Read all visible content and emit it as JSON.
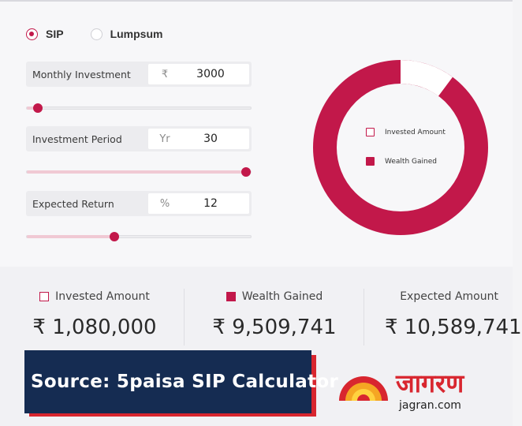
{
  "mode": {
    "options": [
      {
        "label": "SIP",
        "selected": true
      },
      {
        "label": "Lumpsum",
        "selected": false
      }
    ]
  },
  "inputs": [
    {
      "label": "Monthly Investment",
      "unit": "₹",
      "value": "3000",
      "slider_fraction": 0.05
    },
    {
      "label": "Investment Period",
      "unit": "Yr",
      "value": "30",
      "slider_fraction": 1.0
    },
    {
      "label": "Expected Return",
      "unit": "%",
      "value": "12",
      "slider_fraction": 0.39
    }
  ],
  "chart": {
    "legend": [
      {
        "label": "Invested Amount",
        "color": "#ffffff"
      },
      {
        "label": "Wealth Gained",
        "color": "#c2184a"
      }
    ],
    "invested_amount": 1080000,
    "wealth_gained": 9509741
  },
  "summary": {
    "invested": {
      "label": "Invested Amount",
      "value": "₹ 1,080,000"
    },
    "wealth": {
      "label": "Wealth Gained",
      "value": "₹ 9,509,741"
    },
    "expected": {
      "label": "Expected Amount",
      "value": "₹ 10,589,741"
    }
  },
  "source": {
    "text": "Source: 5paisa SIP Calculator"
  },
  "brand": {
    "name": "जागरण",
    "url": "jagran.com"
  },
  "colors": {
    "accent": "#c2184a",
    "navy": "#152c52",
    "brand_red": "#d8262f"
  }
}
